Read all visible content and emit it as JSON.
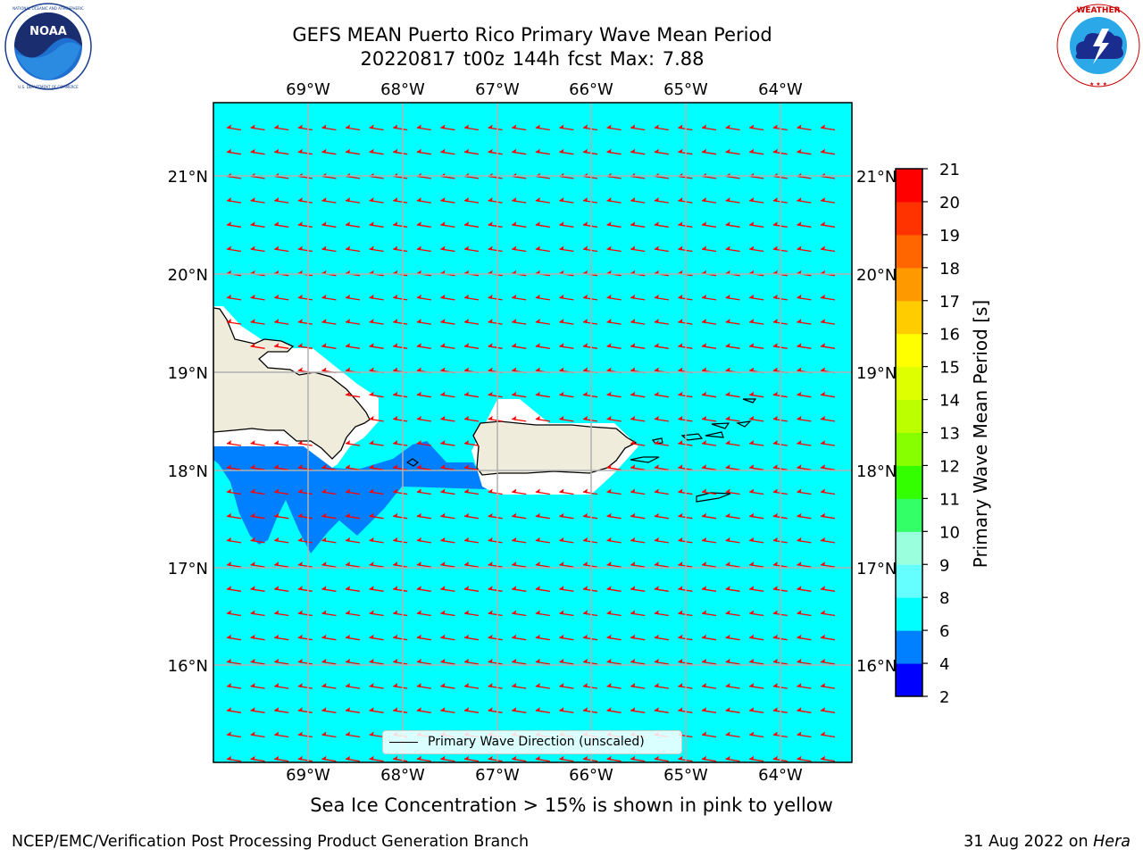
{
  "header": {
    "title_line1": "GEFS MEAN Puerto Rico Primary Wave Mean Period",
    "title_line2": "20220817 t00z 144h fcst   Max: 7.88"
  },
  "logos": {
    "left": {
      "name": "noaa-logo",
      "text": "NOAA",
      "ring_text": "NATIONAL OCEANIC AND ATMOSPHERIC ADMINISTRATION · U.S. DEPARTMENT OF COMMERCE"
    },
    "right": {
      "name": "nws-logo",
      "ring_text": "NATIONAL WEATHER SERVICE"
    }
  },
  "map": {
    "longitudes": [
      "69°W",
      "68°W",
      "67°W",
      "66°W",
      "65°W",
      "64°W"
    ],
    "latitudes": [
      "21°N",
      "20°N",
      "19°N",
      "18°N",
      "17°N",
      "16°N"
    ],
    "ocean_color": "#00ffff",
    "land_color": "#efecdc",
    "short_period_color": "#0080ff",
    "arrow_color": "#ff0000",
    "arrow_direction": "toward southwest",
    "legend_text": "Primary Wave Direction (unscaled)"
  },
  "colorbar": {
    "label": "Primary Wave Mean Period [s]",
    "ticks": [
      "2",
      "4",
      "6",
      "8",
      "9",
      "10",
      "11",
      "12",
      "13",
      "14",
      "15",
      "16",
      "17",
      "18",
      "19",
      "20",
      "21"
    ],
    "colors": [
      "#0000ff",
      "#0080ff",
      "#00ffff",
      "#66ffff",
      "#99ffdd",
      "#33ff66",
      "#33ff00",
      "#88ff00",
      "#bbff00",
      "#ddff00",
      "#ffff00",
      "#ffcc00",
      "#ff9900",
      "#ff6600",
      "#ff3300",
      "#ff0000"
    ]
  },
  "notes": {
    "sea_ice": "Sea Ice Concentration > 15% is shown in pink to yellow"
  },
  "footer": {
    "left": "NCEP/EMC/Verification Post Processing Product Generation Branch",
    "right_date": "31 Aug 2022 on ",
    "right_host": "Hera"
  }
}
